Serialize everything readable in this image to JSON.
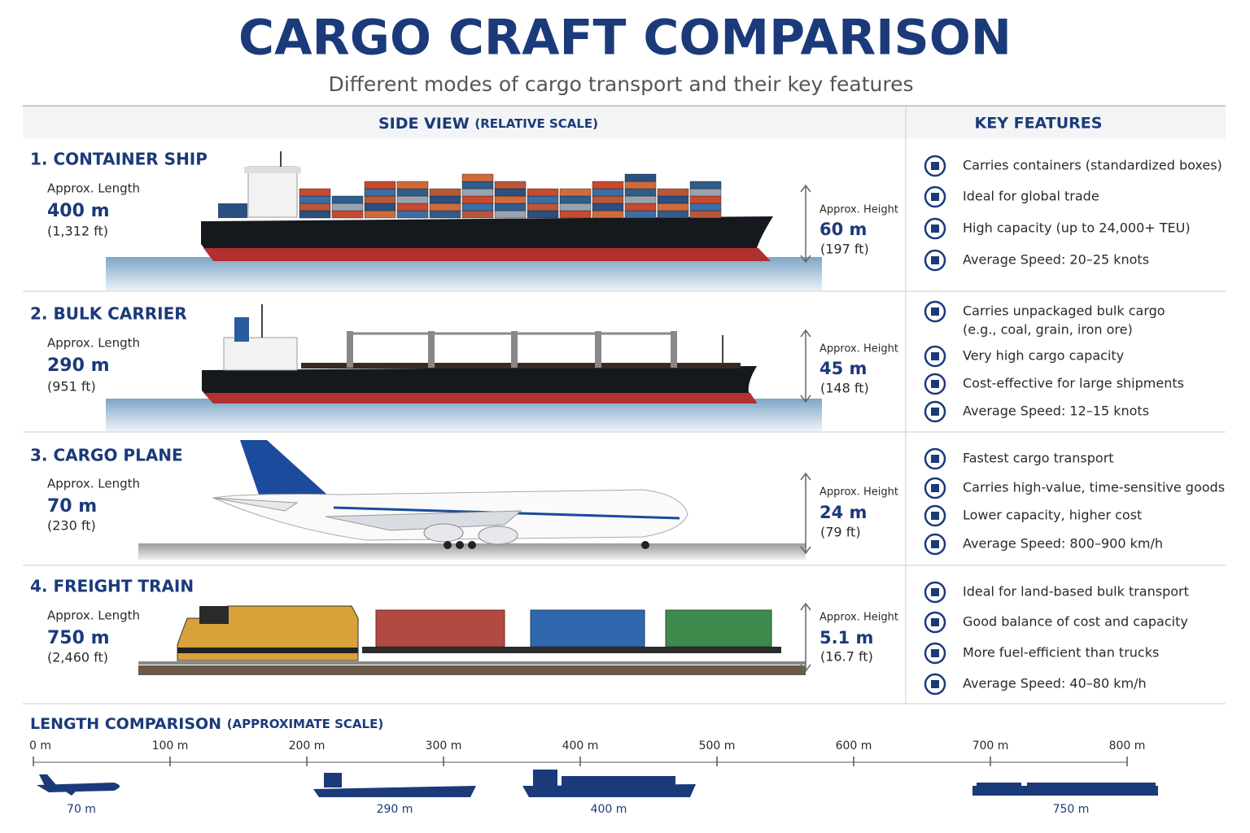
{
  "header": {
    "title": "CARGO CRAFT COMPARISON",
    "subtitle": "Different modes of cargo transport and their key features"
  },
  "columns": {
    "side_view": "SIDE VIEW",
    "side_view_note": "(RELATIVE SCALE)",
    "features": "KEY FEATURES"
  },
  "crafts": [
    {
      "name": "1. CONTAINER SHIP",
      "length_label": "Approx. Length",
      "length": "400 m",
      "length_ft": "(1,312 ft)",
      "height_label": "Approx. Height",
      "height": "60 m",
      "height_ft": "(197 ft)",
      "features": [
        "Carries containers (standardized boxes)",
        "Ideal for global trade",
        "High capacity (up to 24,000+ TEU)",
        "Average Speed: 20–25 knots"
      ]
    },
    {
      "name": "2. BULK CARRIER",
      "length_label": "Approx. Length",
      "length": "290 m",
      "length_ft": "(951 ft)",
      "height_label": "Approx. Height",
      "height": "45 m",
      "height_ft": "(148 ft)",
      "features": [
        [
          "Carries unpackaged bulk cargo",
          "(e.g., coal, grain, iron ore)"
        ],
        "Very high cargo capacity",
        "Cost-effective for large shipments",
        "Average Speed: 12–15 knots"
      ]
    },
    {
      "name": "3. CARGO PLANE",
      "length_label": "Approx. Length",
      "length": "70 m",
      "length_ft": "(230 ft)",
      "height_label": "Approx. Height",
      "height": "24 m",
      "height_ft": "(79 ft)",
      "features": [
        "Fastest cargo transport",
        "Carries high-value, time-sensitive goods",
        "Lower capacity, higher cost",
        "Average Speed: 800–900 km/h"
      ]
    },
    {
      "name": "4. FREIGHT TRAIN",
      "length_label": "Approx. Length",
      "length": "750 m",
      "length_ft": "(2,460 ft)",
      "height_label": "Approx. Height",
      "height": "5.1 m",
      "height_ft": "(16.7 ft)",
      "features": [
        "Ideal for land-based bulk transport",
        "Good balance of cost and capacity",
        "More fuel-efficient than trucks",
        "Average Speed: 40–80 km/h"
      ]
    }
  ],
  "comparison": {
    "title": "LENGTH COMPARISON",
    "note": "(APPROXIMATE SCALE)",
    "ticks": [
      {
        "value": 0,
        "label": "0 m"
      },
      {
        "value": 100,
        "label": "100 m"
      },
      {
        "value": 200,
        "label": "200 m"
      },
      {
        "value": 300,
        "label": "300 m"
      },
      {
        "value": 400,
        "label": "400 m"
      },
      {
        "value": 500,
        "label": "500 m"
      },
      {
        "value": 600,
        "label": "600 m"
      },
      {
        "value": 700,
        "label": "700 m"
      },
      {
        "value": 800,
        "label": "800 m"
      }
    ],
    "labels": [
      "70 m",
      "290 m",
      "400 m",
      "750 m"
    ]
  }
}
